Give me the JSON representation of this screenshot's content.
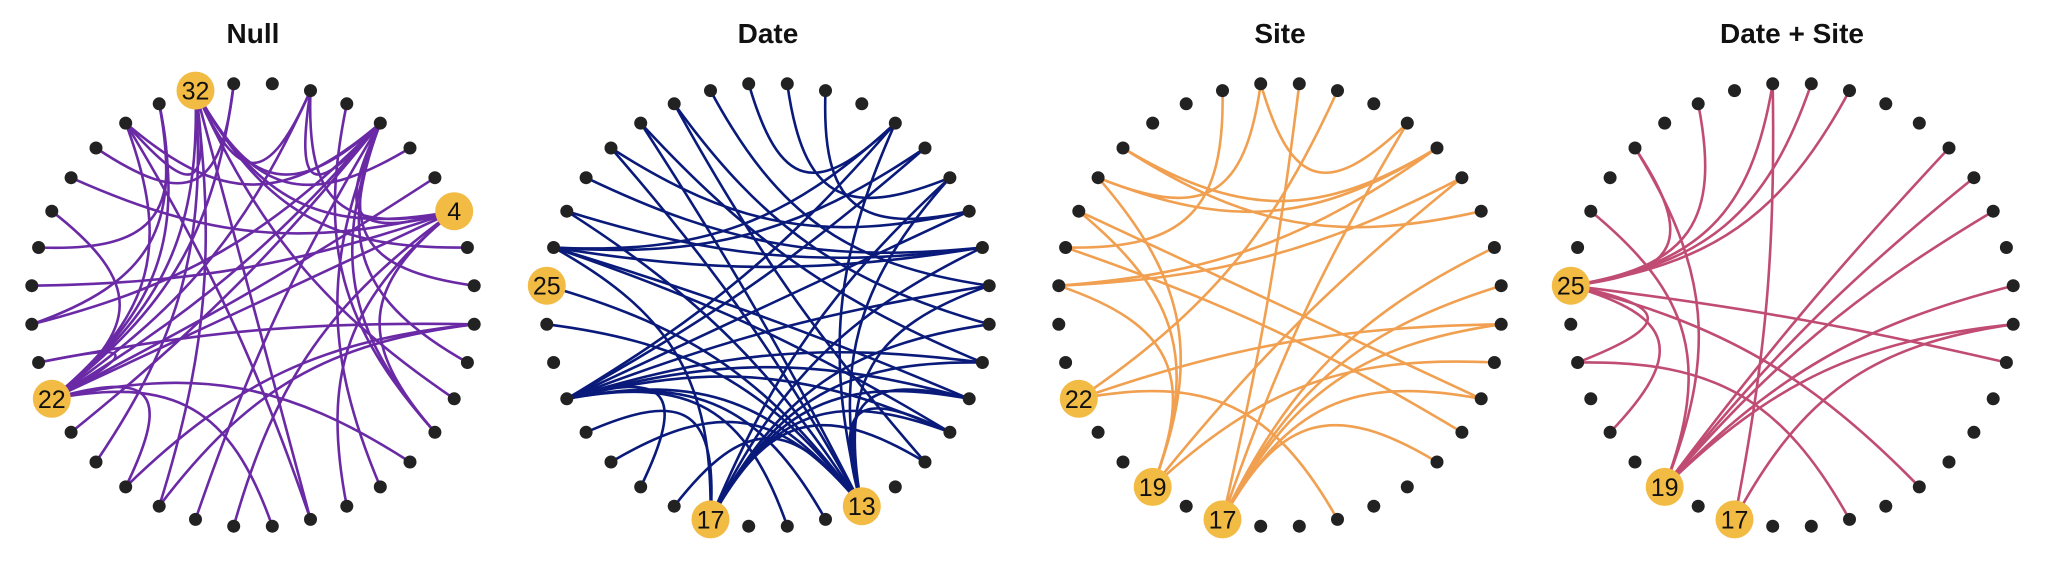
{
  "figure": {
    "panels": [
      {
        "title": "Null",
        "edge_color": "#6a2aa6",
        "hubs": [
          4,
          32,
          22
        ],
        "edges": [
          [
            4,
            1
          ],
          [
            4,
            13
          ],
          [
            4,
            16
          ],
          [
            4,
            10
          ],
          [
            4,
            22
          ],
          [
            4,
            25
          ],
          [
            4,
            28
          ],
          [
            4,
            32
          ],
          [
            4,
            35
          ],
          [
            1,
            6
          ],
          [
            1,
            8
          ],
          [
            1,
            10
          ],
          [
            1,
            12
          ],
          [
            1,
            17
          ],
          [
            1,
            21
          ],
          [
            1,
            22
          ],
          [
            1,
            24
          ],
          [
            1,
            30
          ],
          [
            1,
            32
          ],
          [
            1,
            35
          ],
          [
            32,
            2
          ],
          [
            32,
            5
          ],
          [
            32,
            9
          ],
          [
            32,
            14
          ],
          [
            32,
            20
          ],
          [
            32,
            30
          ],
          [
            32,
            35
          ],
          [
            32,
            18
          ],
          [
            22,
            3
          ],
          [
            22,
            11
          ],
          [
            22,
            15
          ],
          [
            22,
            19
          ],
          [
            22,
            23
          ],
          [
            22,
            27
          ],
          [
            22,
            30
          ],
          [
            22,
            31
          ],
          [
            22,
            32
          ],
          [
            22,
            33
          ],
          [
            22,
            35
          ],
          [
            23,
            7
          ],
          [
            30,
            14
          ],
          [
            29,
            33
          ],
          [
            26,
            31
          ],
          [
            18,
            7
          ],
          [
            19,
            7
          ],
          [
            24,
            31
          ],
          [
            36,
            10
          ]
        ]
      },
      {
        "title": "Date",
        "edge_color": "#0a1a7a",
        "hubs": [
          13,
          17,
          25
        ],
        "edges": [
          [
            13,
            1
          ],
          [
            13,
            3
          ],
          [
            13,
            6
          ],
          [
            13,
            9
          ],
          [
            13,
            10
          ],
          [
            13,
            18
          ],
          [
            13,
            20
          ],
          [
            13,
            22
          ],
          [
            13,
            24
          ],
          [
            13,
            25
          ],
          [
            13,
            27
          ],
          [
            13,
            29
          ],
          [
            13,
            30
          ],
          [
            17,
            3
          ],
          [
            17,
            5
          ],
          [
            17,
            7
          ],
          [
            17,
            8
          ],
          [
            17,
            9
          ],
          [
            17,
            10
          ],
          [
            17,
            11
          ],
          [
            17,
            21
          ],
          [
            17,
            26
          ],
          [
            22,
            1
          ],
          [
            22,
            2
          ],
          [
            22,
            4
          ],
          [
            22,
            6
          ],
          [
            22,
            8
          ],
          [
            22,
            9
          ],
          [
            22,
            10
          ],
          [
            22,
            14
          ],
          [
            22,
            15
          ],
          [
            22,
            19
          ],
          [
            26,
            1
          ],
          [
            26,
            2
          ],
          [
            26,
            5
          ],
          [
            26,
            9
          ],
          [
            26,
            10
          ],
          [
            27,
            5
          ],
          [
            28,
            5
          ],
          [
            29,
            4
          ],
          [
            30,
            8
          ],
          [
            31,
            7
          ],
          [
            31,
            11
          ],
          [
            32,
            6
          ],
          [
            33,
            1
          ],
          [
            34,
            3
          ],
          [
            35,
            4
          ]
        ]
      },
      {
        "title": "Site",
        "edge_color": "#f0a050",
        "hubs": [
          17,
          19,
          22
        ],
        "edges": [
          [
            17,
            34
          ],
          [
            17,
            1
          ],
          [
            17,
            5
          ],
          [
            17,
            7
          ],
          [
            17,
            6
          ],
          [
            17,
            9
          ],
          [
            17,
            11
          ],
          [
            19,
            3
          ],
          [
            19,
            8
          ],
          [
            19,
            25
          ],
          [
            19,
            27
          ],
          [
            19,
            28
          ],
          [
            22,
            35
          ],
          [
            22,
            14
          ],
          [
            22,
            7
          ],
          [
            26,
            10
          ],
          [
            26,
            32
          ],
          [
            27,
            9
          ],
          [
            28,
            2
          ],
          [
            28,
            33
          ],
          [
            29,
            2
          ],
          [
            29,
            4
          ],
          [
            33,
            1
          ],
          [
            25,
            2
          ],
          [
            25,
            3
          ]
        ]
      },
      {
        "title": "Date + Site",
        "edge_color": "#c04c74",
        "hubs": [
          17,
          19,
          25
        ],
        "edges": [
          [
            17,
            33
          ],
          [
            17,
            7
          ],
          [
            19,
            2
          ],
          [
            19,
            3
          ],
          [
            19,
            4
          ],
          [
            19,
            7
          ],
          [
            19,
            6
          ],
          [
            19,
            29
          ],
          [
            19,
            27
          ],
          [
            25,
            21
          ],
          [
            25,
            29
          ],
          [
            25,
            34
          ],
          [
            25,
            12
          ],
          [
            25,
            8
          ],
          [
            25,
            31
          ],
          [
            25,
            33
          ],
          [
            25,
            35
          ],
          [
            25,
            23
          ],
          [
            23,
            14
          ]
        ]
      }
    ]
  }
}
